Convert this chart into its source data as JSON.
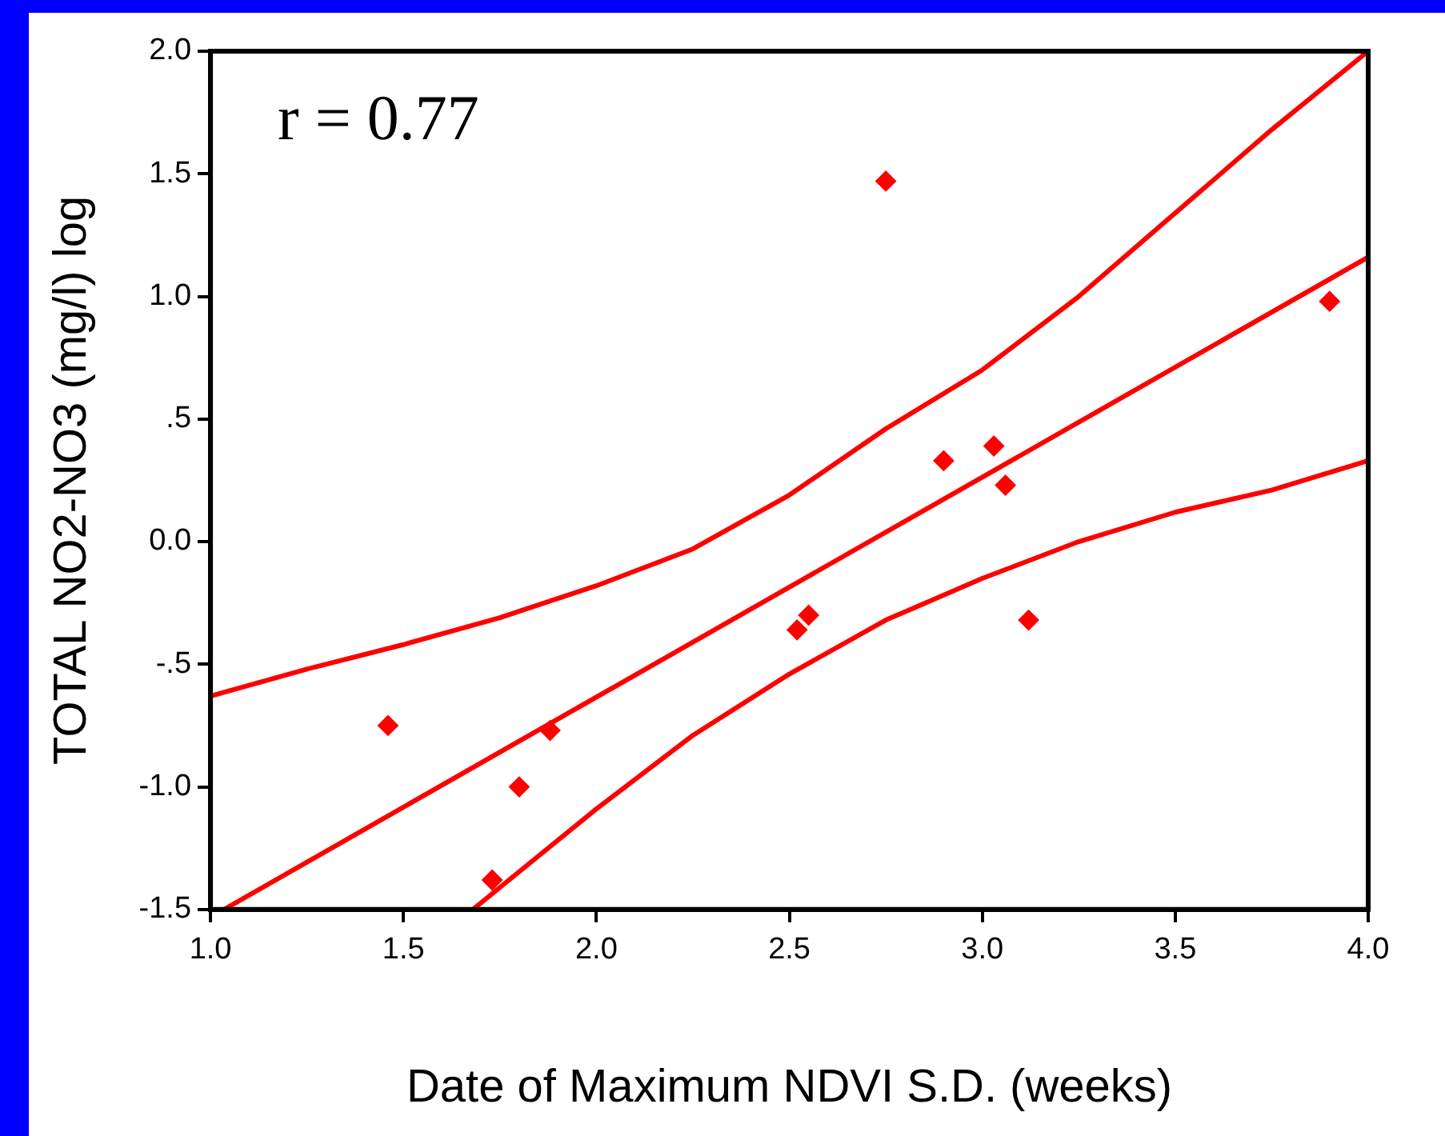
{
  "chart_data": {
    "type": "scatter",
    "xlabel": "Date of Maximum NDVI S.D. (weeks)",
    "ylabel": "TOTAL NO2-NO3 (mg/l) log",
    "annotations": [
      "r = 0.77"
    ],
    "xlim": [
      1.0,
      4.0
    ],
    "ylim": [
      -1.5,
      2.0
    ],
    "xticks": [
      {
        "value": 1.0,
        "label": "1.0"
      },
      {
        "value": 1.5,
        "label": "1.5"
      },
      {
        "value": 2.0,
        "label": "2.0"
      },
      {
        "value": 2.5,
        "label": "2.5"
      },
      {
        "value": 3.0,
        "label": "3.0"
      },
      {
        "value": 3.5,
        "label": "3.5"
      },
      {
        "value": 4.0,
        "label": "4.0"
      }
    ],
    "yticks": [
      {
        "value": -1.5,
        "label": "-1.5"
      },
      {
        "value": -1.0,
        "label": "-1.0"
      },
      {
        "value": -0.5,
        "label": "-.5"
      },
      {
        "value": 0.0,
        "label": "0.0"
      },
      {
        "value": 0.5,
        "label": ".5"
      },
      {
        "value": 1.0,
        "label": "1.0"
      },
      {
        "value": 1.5,
        "label": "1.5"
      },
      {
        "value": 2.0,
        "label": "2.0"
      }
    ],
    "grid": false,
    "legend": false,
    "series": [
      {
        "type": "scatter",
        "color": "#ff0000",
        "marker": "diamond",
        "x": [
          1.46,
          1.73,
          1.8,
          1.88,
          2.52,
          2.55,
          2.75,
          2.9,
          3.03,
          3.06,
          3.12,
          3.9
        ],
        "values": [
          -0.75,
          -1.38,
          -1.0,
          -0.77,
          -0.36,
          -0.3,
          1.47,
          0.33,
          0.39,
          0.23,
          -0.32,
          0.98
        ]
      },
      {
        "type": "line",
        "color": "#ff0000",
        "marker": "none",
        "x": [
          1.035,
          4.0
        ],
        "values": [
          -1.5,
          1.16
        ]
      },
      {
        "type": "line",
        "color": "#ff0000",
        "marker": "none",
        "x": [
          1.0,
          1.25,
          1.5,
          1.75,
          2.0,
          2.25,
          2.5,
          2.75,
          3.0,
          3.25,
          3.5,
          3.75,
          4.0
        ],
        "values": [
          -0.63,
          -0.52,
          -0.42,
          -0.31,
          -0.18,
          -0.03,
          0.19,
          0.46,
          0.7,
          1.0,
          1.34,
          1.68,
          2.0
        ]
      },
      {
        "type": "line",
        "color": "#ff0000",
        "marker": "none",
        "x": [
          1.68,
          1.75,
          2.0,
          2.25,
          2.5,
          2.75,
          3.0,
          3.25,
          3.5,
          3.75,
          4.0
        ],
        "values": [
          -1.5,
          -1.41,
          -1.09,
          -0.79,
          -0.54,
          -0.32,
          -0.15,
          0.0,
          0.12,
          0.21,
          0.33
        ]
      }
    ]
  }
}
